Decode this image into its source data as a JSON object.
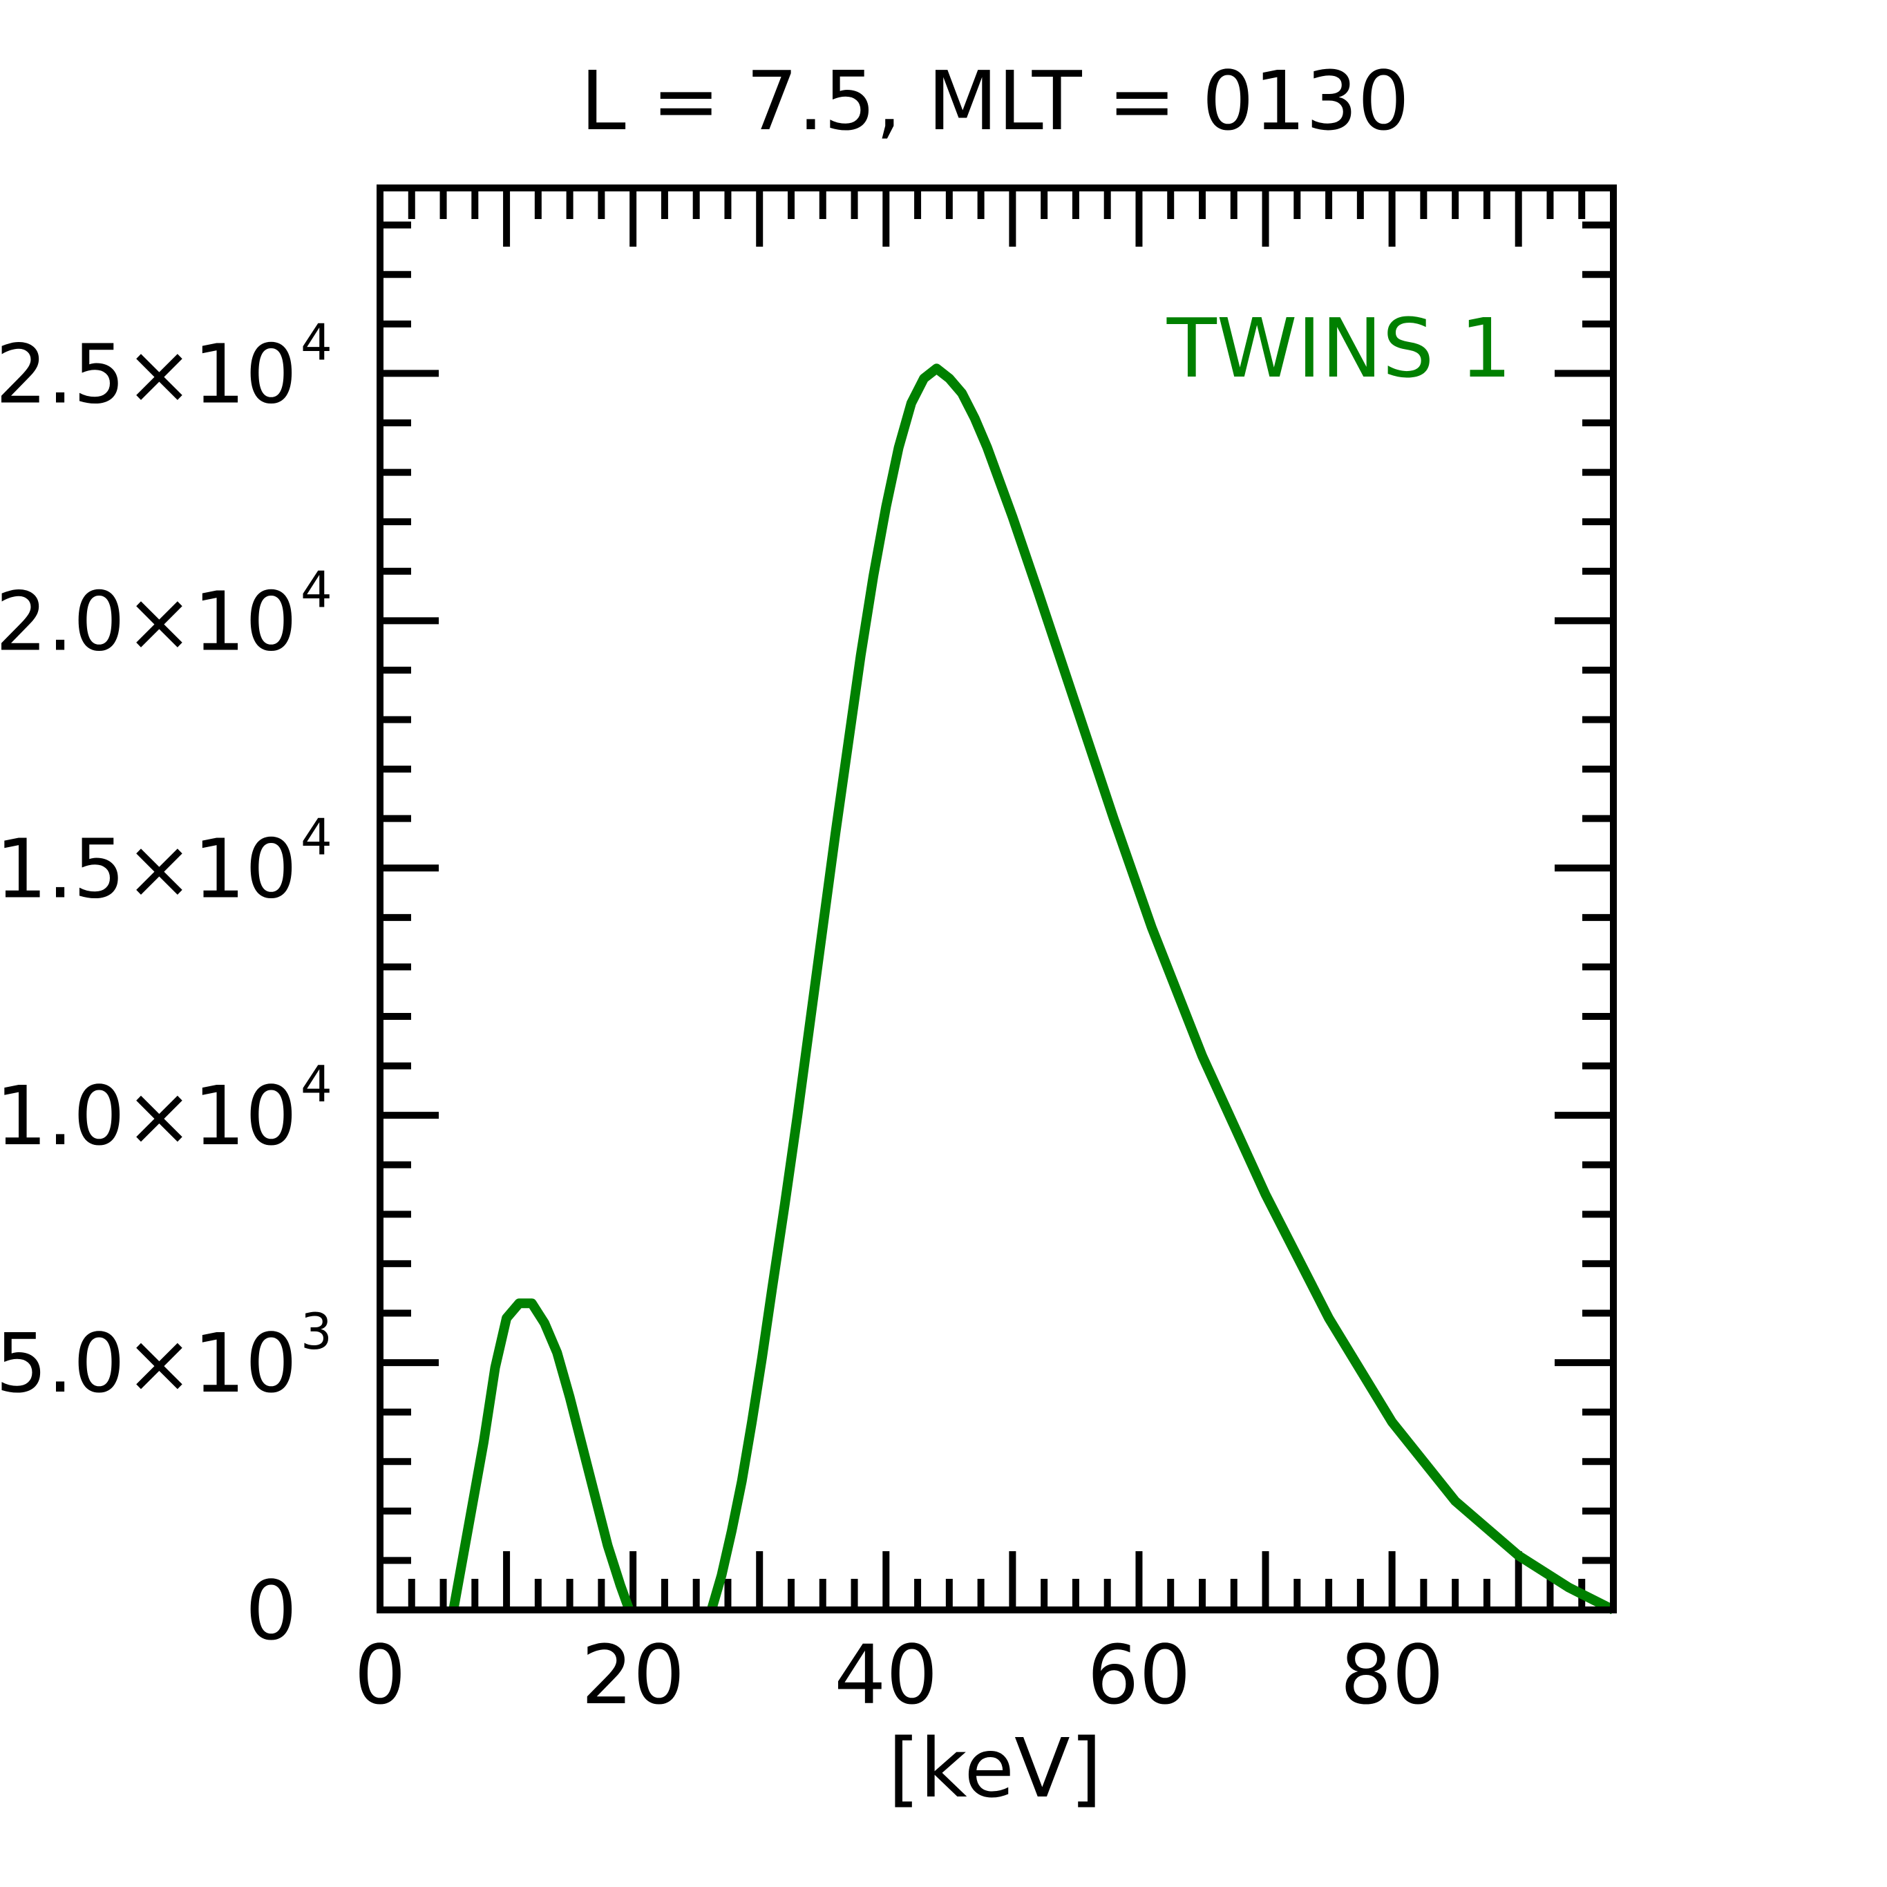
{
  "chart_data": {
    "type": "line",
    "title": "L =  7.5, MLT = 0130",
    "xlabel": "[keV]",
    "ylabel": "",
    "xlim": [
      0,
      97.5
    ],
    "ylim": [
      0,
      28750
    ],
    "x_ticks": [
      {
        "value": 0,
        "label": "0"
      },
      {
        "value": 20,
        "label": "20"
      },
      {
        "value": 40,
        "label": "40"
      },
      {
        "value": 60,
        "label": "60"
      },
      {
        "value": 80,
        "label": "80"
      }
    ],
    "y_ticks": [
      {
        "value": 0,
        "mantissa": "0",
        "exponent": ""
      },
      {
        "value": 5000,
        "mantissa": "5.0×10",
        "exponent": "3"
      },
      {
        "value": 10000,
        "mantissa": "1.0×10",
        "exponent": "4"
      },
      {
        "value": 15000,
        "mantissa": "1.5×10",
        "exponent": "4"
      },
      {
        "value": 20000,
        "mantissa": "2.0×10",
        "exponent": "4"
      },
      {
        "value": 25000,
        "mantissa": "2.5×10",
        "exponent": "4"
      }
    ],
    "grid": false,
    "legend_position": "top-right",
    "series": [
      {
        "name": "TWINS 1",
        "color": "#008000",
        "segments": [
          [
            [
              5.8,
              0
            ],
            [
              7.0,
              1700
            ],
            [
              8.2,
              3400
            ],
            [
              9.1,
              4900
            ],
            [
              10.0,
              5900
            ],
            [
              11.0,
              6200
            ],
            [
              12.0,
              6200
            ],
            [
              13.0,
              5800
            ],
            [
              14.0,
              5200
            ],
            [
              15.0,
              4300
            ],
            [
              16.0,
              3300
            ],
            [
              17.0,
              2300
            ],
            [
              18.0,
              1300
            ],
            [
              19.0,
              500
            ],
            [
              19.7,
              0
            ]
          ],
          [
            [
              26.2,
              0
            ],
            [
              27.0,
              700
            ],
            [
              27.8,
              1600
            ],
            [
              28.6,
              2600
            ],
            [
              29.4,
              3800
            ],
            [
              30.2,
              5100
            ],
            [
              31.0,
              6500
            ],
            [
              32.0,
              8200
            ],
            [
              33.0,
              10000
            ],
            [
              34.0,
              11900
            ],
            [
              35.0,
              13800
            ],
            [
              36.0,
              15700
            ],
            [
              37.0,
              17500
            ],
            [
              38.0,
              19300
            ],
            [
              39.0,
              20900
            ],
            [
              40.0,
              22300
            ],
            [
              41.0,
              23500
            ],
            [
              42.0,
              24400
            ],
            [
              43.0,
              24900
            ],
            [
              44.0,
              25100
            ],
            [
              45.0,
              24900
            ],
            [
              46.0,
              24600
            ],
            [
              47.0,
              24100
            ],
            [
              48.0,
              23500
            ],
            [
              50.0,
              22100
            ],
            [
              52.0,
              20600
            ],
            [
              55.0,
              18300
            ],
            [
              58.0,
              16000
            ],
            [
              61.0,
              13800
            ],
            [
              65.0,
              11200
            ],
            [
              70.0,
              8400
            ],
            [
              75.0,
              5900
            ],
            [
              80.0,
              3800
            ],
            [
              85.0,
              2200
            ],
            [
              90.0,
              1100
            ],
            [
              94.0,
              450
            ],
            [
              97.5,
              0
            ]
          ]
        ]
      }
    ]
  }
}
